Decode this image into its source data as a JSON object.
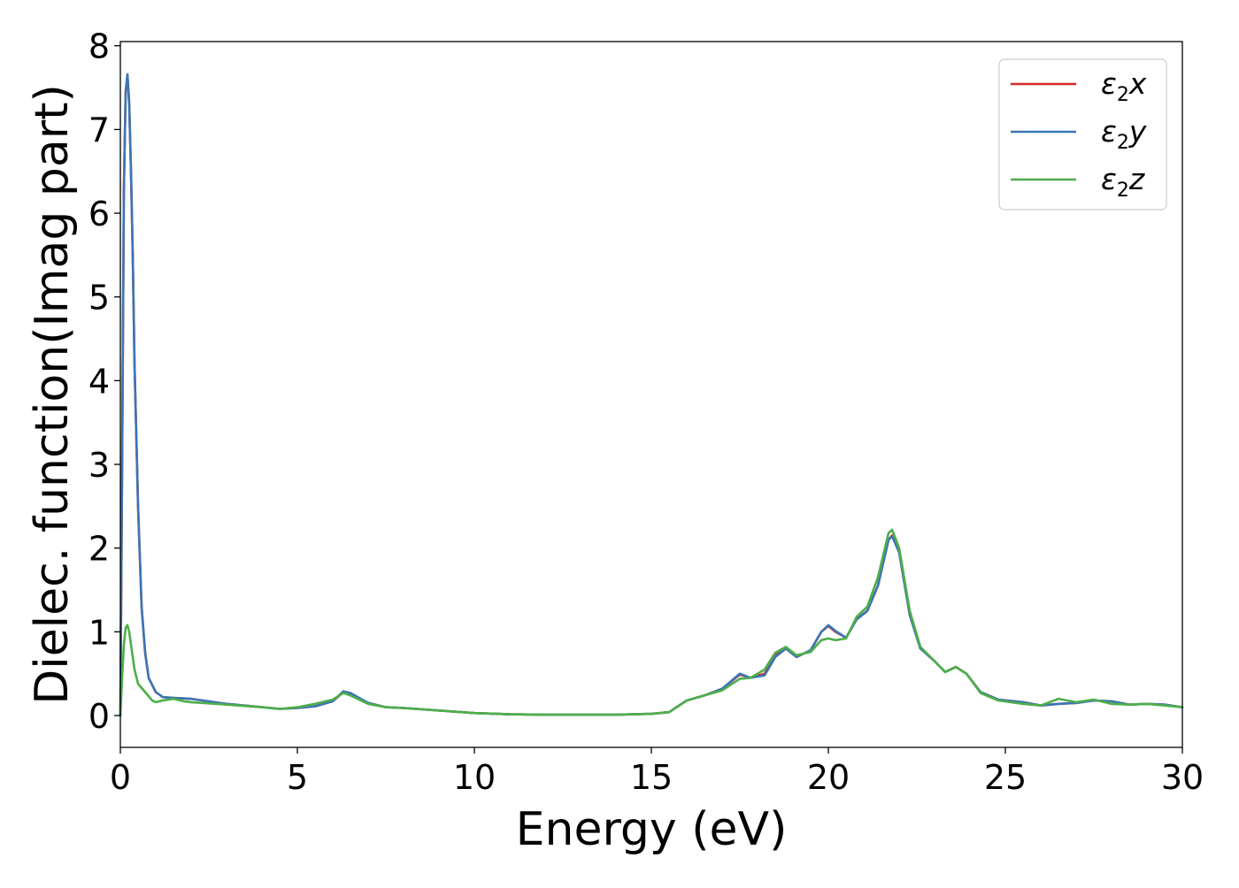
{
  "chart_data": {
    "type": "line",
    "title": "",
    "xlabel": "Energy (eV)",
    "ylabel": "Dielec. function(Imag part)",
    "xlim": [
      0,
      30
    ],
    "ylim": [
      -0.38,
      8.05
    ],
    "xticks": [
      0,
      5,
      10,
      15,
      20,
      25,
      30
    ],
    "yticks": [
      0,
      1,
      2,
      3,
      4,
      5,
      6,
      7,
      8
    ],
    "grid": false,
    "legend_position": "top-right",
    "series": [
      {
        "name": "ε2x",
        "legend": {
          "symbol": "ε",
          "sub": "2",
          "axis": "x"
        },
        "color": "#d62728",
        "points": [
          [
            0,
            0
          ],
          [
            0.05,
            3.0
          ],
          [
            0.1,
            6.3
          ],
          [
            0.15,
            7.45
          ],
          [
            0.2,
            7.65
          ],
          [
            0.25,
            7.3
          ],
          [
            0.3,
            6.5
          ],
          [
            0.35,
            5.5
          ],
          [
            0.4,
            4.2
          ],
          [
            0.5,
            2.5
          ],
          [
            0.6,
            1.3
          ],
          [
            0.7,
            0.75
          ],
          [
            0.8,
            0.45
          ],
          [
            1.0,
            0.28
          ],
          [
            1.2,
            0.22
          ],
          [
            1.5,
            0.21
          ],
          [
            2.0,
            0.2
          ],
          [
            3.0,
            0.14
          ],
          [
            4.0,
            0.1
          ],
          [
            4.5,
            0.08
          ],
          [
            5.0,
            0.09
          ],
          [
            5.5,
            0.11
          ],
          [
            6.0,
            0.17
          ],
          [
            6.3,
            0.28
          ],
          [
            6.5,
            0.26
          ],
          [
            7.0,
            0.15
          ],
          [
            7.5,
            0.1
          ],
          [
            8.0,
            0.09
          ],
          [
            9.0,
            0.06
          ],
          [
            10.0,
            0.03
          ],
          [
            11.0,
            0.015
          ],
          [
            12.0,
            0.01
          ],
          [
            14.0,
            0.01
          ],
          [
            15.0,
            0.02
          ],
          [
            15.5,
            0.04
          ],
          [
            16.0,
            0.18
          ],
          [
            16.5,
            0.24
          ],
          [
            17.0,
            0.32
          ],
          [
            17.5,
            0.49
          ],
          [
            17.8,
            0.45
          ],
          [
            18.2,
            0.5
          ],
          [
            18.5,
            0.72
          ],
          [
            18.8,
            0.8
          ],
          [
            19.1,
            0.7
          ],
          [
            19.5,
            0.78
          ],
          [
            19.8,
            1.0
          ],
          [
            20.0,
            1.07
          ],
          [
            20.2,
            1.0
          ],
          [
            20.5,
            0.93
          ],
          [
            20.8,
            1.15
          ],
          [
            21.1,
            1.25
          ],
          [
            21.4,
            1.55
          ],
          [
            21.7,
            2.1
          ],
          [
            21.8,
            2.15
          ],
          [
            22.0,
            1.95
          ],
          [
            22.3,
            1.2
          ],
          [
            22.6,
            0.8
          ],
          [
            23.0,
            0.65
          ],
          [
            23.3,
            0.52
          ],
          [
            23.6,
            0.58
          ],
          [
            23.9,
            0.5
          ],
          [
            24.3,
            0.28
          ],
          [
            24.8,
            0.19
          ],
          [
            25.5,
            0.16
          ],
          [
            26.0,
            0.12
          ],
          [
            26.5,
            0.14
          ],
          [
            27.0,
            0.15
          ],
          [
            27.5,
            0.18
          ],
          [
            28.0,
            0.17
          ],
          [
            28.5,
            0.13
          ],
          [
            29.0,
            0.14
          ],
          [
            29.5,
            0.13
          ],
          [
            30.0,
            0.1
          ]
        ]
      },
      {
        "name": "ε2y",
        "legend": {
          "symbol": "ε",
          "sub": "2",
          "axis": "y"
        },
        "color": "#3a76b5",
        "points": [
          [
            0,
            0
          ],
          [
            0.05,
            3.0
          ],
          [
            0.1,
            6.3
          ],
          [
            0.15,
            7.45
          ],
          [
            0.2,
            7.66
          ],
          [
            0.25,
            7.32
          ],
          [
            0.3,
            6.5
          ],
          [
            0.35,
            5.5
          ],
          [
            0.4,
            4.2
          ],
          [
            0.5,
            2.5
          ],
          [
            0.6,
            1.3
          ],
          [
            0.7,
            0.75
          ],
          [
            0.8,
            0.45
          ],
          [
            1.0,
            0.28
          ],
          [
            1.2,
            0.22
          ],
          [
            1.5,
            0.21
          ],
          [
            2.0,
            0.2
          ],
          [
            3.0,
            0.14
          ],
          [
            4.0,
            0.1
          ],
          [
            4.5,
            0.08
          ],
          [
            5.0,
            0.09
          ],
          [
            5.5,
            0.11
          ],
          [
            6.0,
            0.17
          ],
          [
            6.3,
            0.29
          ],
          [
            6.5,
            0.27
          ],
          [
            7.0,
            0.15
          ],
          [
            7.5,
            0.1
          ],
          [
            8.0,
            0.09
          ],
          [
            9.0,
            0.06
          ],
          [
            10.0,
            0.03
          ],
          [
            11.0,
            0.015
          ],
          [
            12.0,
            0.01
          ],
          [
            14.0,
            0.01
          ],
          [
            15.0,
            0.02
          ],
          [
            15.5,
            0.04
          ],
          [
            16.0,
            0.18
          ],
          [
            16.5,
            0.24
          ],
          [
            17.0,
            0.32
          ],
          [
            17.5,
            0.5
          ],
          [
            17.8,
            0.45
          ],
          [
            18.2,
            0.48
          ],
          [
            18.5,
            0.7
          ],
          [
            18.8,
            0.8
          ],
          [
            19.1,
            0.7
          ],
          [
            19.5,
            0.78
          ],
          [
            19.8,
            1.0
          ],
          [
            20.0,
            1.08
          ],
          [
            20.2,
            1.01
          ],
          [
            20.5,
            0.93
          ],
          [
            20.8,
            1.15
          ],
          [
            21.1,
            1.25
          ],
          [
            21.4,
            1.55
          ],
          [
            21.7,
            2.1
          ],
          [
            21.8,
            2.14
          ],
          [
            22.0,
            1.95
          ],
          [
            22.3,
            1.2
          ],
          [
            22.6,
            0.8
          ],
          [
            23.0,
            0.65
          ],
          [
            23.3,
            0.52
          ],
          [
            23.6,
            0.58
          ],
          [
            23.9,
            0.5
          ],
          [
            24.3,
            0.28
          ],
          [
            24.8,
            0.19
          ],
          [
            25.5,
            0.16
          ],
          [
            26.0,
            0.12
          ],
          [
            26.5,
            0.14
          ],
          [
            27.0,
            0.15
          ],
          [
            27.5,
            0.18
          ],
          [
            28.0,
            0.17
          ],
          [
            28.5,
            0.13
          ],
          [
            29.0,
            0.14
          ],
          [
            29.5,
            0.13
          ],
          [
            30.0,
            0.1
          ]
        ]
      },
      {
        "name": "ε2z",
        "legend": {
          "symbol": "ε",
          "sub": "2",
          "axis": "z"
        },
        "color": "#4daf4a",
        "points": [
          [
            0,
            0
          ],
          [
            0.05,
            0.45
          ],
          [
            0.1,
            0.85
          ],
          [
            0.15,
            1.05
          ],
          [
            0.2,
            1.08
          ],
          [
            0.25,
            1.0
          ],
          [
            0.3,
            0.85
          ],
          [
            0.4,
            0.55
          ],
          [
            0.5,
            0.38
          ],
          [
            0.7,
            0.28
          ],
          [
            0.9,
            0.18
          ],
          [
            1.0,
            0.16
          ],
          [
            1.2,
            0.18
          ],
          [
            1.5,
            0.2
          ],
          [
            1.8,
            0.17
          ],
          [
            2.0,
            0.16
          ],
          [
            3.0,
            0.13
          ],
          [
            4.0,
            0.1
          ],
          [
            4.5,
            0.08
          ],
          [
            5.0,
            0.1
          ],
          [
            5.5,
            0.14
          ],
          [
            6.0,
            0.19
          ],
          [
            6.3,
            0.27
          ],
          [
            6.5,
            0.24
          ],
          [
            7.0,
            0.14
          ],
          [
            7.5,
            0.1
          ],
          [
            8.0,
            0.09
          ],
          [
            9.0,
            0.06
          ],
          [
            10.0,
            0.03
          ],
          [
            11.0,
            0.015
          ],
          [
            12.0,
            0.01
          ],
          [
            14.0,
            0.01
          ],
          [
            15.0,
            0.02
          ],
          [
            15.5,
            0.04
          ],
          [
            16.0,
            0.18
          ],
          [
            16.5,
            0.24
          ],
          [
            17.0,
            0.3
          ],
          [
            17.5,
            0.44
          ],
          [
            17.8,
            0.45
          ],
          [
            18.2,
            0.55
          ],
          [
            18.5,
            0.75
          ],
          [
            18.8,
            0.82
          ],
          [
            19.1,
            0.72
          ],
          [
            19.5,
            0.76
          ],
          [
            19.8,
            0.9
          ],
          [
            20.0,
            0.92
          ],
          [
            20.2,
            0.9
          ],
          [
            20.5,
            0.92
          ],
          [
            20.8,
            1.18
          ],
          [
            21.1,
            1.3
          ],
          [
            21.4,
            1.65
          ],
          [
            21.7,
            2.18
          ],
          [
            21.8,
            2.22
          ],
          [
            22.0,
            2.0
          ],
          [
            22.3,
            1.25
          ],
          [
            22.6,
            0.82
          ],
          [
            23.0,
            0.65
          ],
          [
            23.3,
            0.52
          ],
          [
            23.6,
            0.58
          ],
          [
            23.9,
            0.5
          ],
          [
            24.3,
            0.27
          ],
          [
            24.8,
            0.18
          ],
          [
            25.5,
            0.14
          ],
          [
            26.0,
            0.12
          ],
          [
            26.5,
            0.2
          ],
          [
            27.0,
            0.16
          ],
          [
            27.5,
            0.19
          ],
          [
            28.0,
            0.14
          ],
          [
            28.5,
            0.13
          ],
          [
            29.0,
            0.14
          ],
          [
            29.5,
            0.12
          ],
          [
            30.0,
            0.1
          ]
        ]
      }
    ]
  }
}
